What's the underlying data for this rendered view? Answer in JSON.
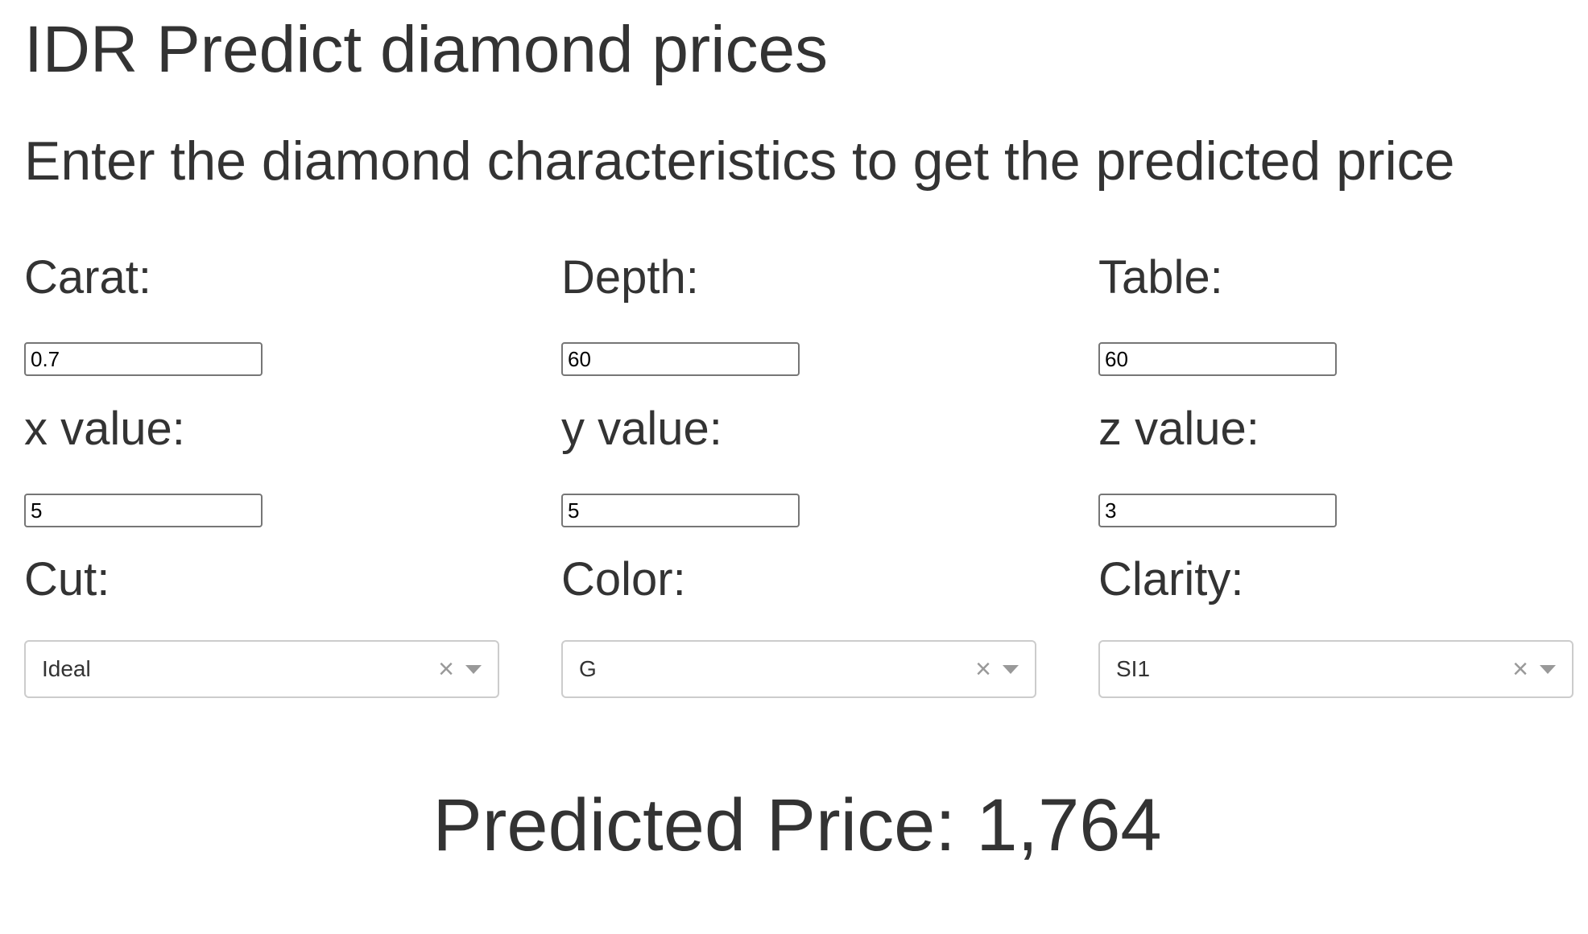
{
  "page": {
    "title": "IDR Predict diamond prices",
    "subtitle": "Enter the diamond characteristics to get the predicted price"
  },
  "fields": {
    "carat": {
      "label": "Carat:",
      "value": "0.7"
    },
    "depth": {
      "label": "Depth:",
      "value": "60"
    },
    "table": {
      "label": "Table:",
      "value": "60"
    },
    "x": {
      "label": "x value:",
      "value": "5"
    },
    "y": {
      "label": "y value:",
      "value": "5"
    },
    "z": {
      "label": "z value:",
      "value": "3"
    }
  },
  "selects": {
    "cut": {
      "label": "Cut:",
      "selected": "Ideal"
    },
    "color": {
      "label": "Color:",
      "selected": "G"
    },
    "clarity": {
      "label": "Clarity:",
      "selected": "SI1"
    }
  },
  "icons": {
    "clear": "×",
    "clear_icon_name": "close-icon",
    "dropdown_icon_name": "caret-down-icon"
  },
  "result": {
    "text": "Predicted Price: 1,764"
  },
  "colors": {
    "text": "#333333",
    "input_border": "#767676",
    "select_border": "#cccccc",
    "icon": "#999999"
  }
}
